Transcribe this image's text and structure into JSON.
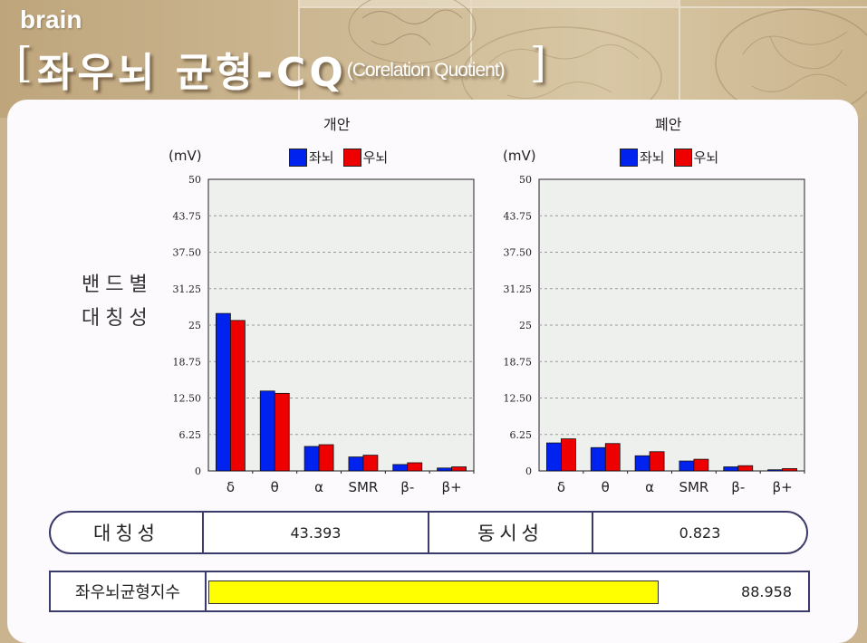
{
  "header": {
    "brand": "brain",
    "title_open": "[",
    "title_main": "좌우뇌 균형-CQ",
    "title_sub": "(Corelation Quotient)",
    "title_close": "]"
  },
  "row_label": {
    "line1": "밴드별",
    "line2": "대칭성"
  },
  "colors": {
    "left_brain": "#0022ee",
    "right_brain": "#ee0000",
    "plot_bg": "#eef0ee",
    "index_bar": "#ffff00",
    "border": "#3b3b6b"
  },
  "chart_data": [
    {
      "type": "bar",
      "title": "개안",
      "ylabel": "(mV)",
      "categories": [
        "δ",
        "θ",
        "α",
        "SMR",
        "β-",
        "β+"
      ],
      "yticks": [
        "0",
        "6.25",
        "12.50",
        "18.75",
        "25",
        "31.25",
        "37.50",
        "43.75",
        "50"
      ],
      "ylim": [
        0,
        50
      ],
      "grid": true,
      "legend": "top",
      "series": [
        {
          "name": "좌뇌",
          "color": "#0022ee",
          "values": [
            27.0,
            13.7,
            4.2,
            2.4,
            1.1,
            0.5
          ]
        },
        {
          "name": "우뇌",
          "color": "#ee0000",
          "values": [
            25.8,
            13.3,
            4.5,
            2.7,
            1.4,
            0.7
          ]
        }
      ]
    },
    {
      "type": "bar",
      "title": "폐안",
      "ylabel": "(mV)",
      "categories": [
        "δ",
        "θ",
        "α",
        "SMR",
        "β-",
        "β+"
      ],
      "yticks": [
        "0",
        "6.25",
        "12.50",
        "18.75",
        "25",
        "31.25",
        "37.50",
        "43.75",
        "50"
      ],
      "ylim": [
        0,
        50
      ],
      "grid": true,
      "legend": "top",
      "series": [
        {
          "name": "좌뇌",
          "color": "#0022ee",
          "values": [
            4.8,
            4.0,
            2.6,
            1.7,
            0.7,
            0.2
          ]
        },
        {
          "name": "우뇌",
          "color": "#ee0000",
          "values": [
            5.5,
            4.7,
            3.3,
            2.0,
            0.9,
            0.4
          ]
        }
      ]
    }
  ],
  "summary": {
    "symmetry_label": "대칭성",
    "symmetry_value": "43.393",
    "sync_label": "동시성",
    "sync_value": "0.823"
  },
  "balance_index": {
    "label": "좌우뇌균형지수",
    "value": "88.958",
    "fill_fraction": 0.75
  }
}
